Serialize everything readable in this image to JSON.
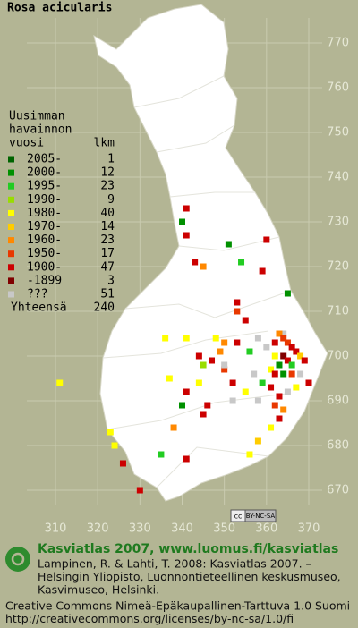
{
  "title": "Rosa acicularis",
  "legend": {
    "heading": [
      "Uusimman",
      "havainnon",
      "vuosi"
    ],
    "count_heading": "lkm",
    "classes": [
      {
        "label": "2005-",
        "count": 1,
        "color": "#006400"
      },
      {
        "label": "2000-",
        "count": 12,
        "color": "#009000"
      },
      {
        "label": "1995-",
        "count": 23,
        "color": "#22cc22"
      },
      {
        "label": "1990-",
        "count": 9,
        "color": "#99dd00"
      },
      {
        "label": "1980-",
        "count": 40,
        "color": "#ffff00"
      },
      {
        "label": "1970-",
        "count": 14,
        "color": "#ffcc00"
      },
      {
        "label": "1960-",
        "count": 23,
        "color": "#ff8800"
      },
      {
        "label": "1950-",
        "count": 17,
        "color": "#e83800"
      },
      {
        "label": "1900-",
        "count": 47,
        "color": "#cc0000"
      },
      {
        "label": "-1899",
        "count": 3,
        "color": "#800000"
      },
      {
        "label": "???",
        "count": 51,
        "color": "#c8c8c8"
      }
    ],
    "total_label": "Yhteensä",
    "total": 240
  },
  "map": {
    "xlim": [
      310,
      370
    ],
    "ylim": [
      670,
      770
    ],
    "xticks": [
      310,
      320,
      330,
      340,
      350,
      360,
      370
    ],
    "yticks": [
      670,
      680,
      690,
      700,
      710,
      720,
      730,
      740,
      750,
      760,
      770
    ],
    "squares": [
      [
        341,
        733,
        8
      ],
      [
        340,
        730,
        1
      ],
      [
        341,
        727,
        8
      ],
      [
        351,
        725,
        1
      ],
      [
        360,
        726,
        8
      ],
      [
        343,
        721,
        8
      ],
      [
        345,
        720,
        6
      ],
      [
        354,
        721,
        2
      ],
      [
        359,
        719,
        8
      ],
      [
        365,
        714,
        1
      ],
      [
        353,
        712,
        8
      ],
      [
        353,
        710,
        7
      ],
      [
        355,
        708,
        8
      ],
      [
        364,
        705,
        10
      ],
      [
        358,
        704,
        10
      ],
      [
        336,
        704,
        4
      ],
      [
        341,
        704,
        4
      ],
      [
        348,
        704,
        4
      ],
      [
        350,
        703,
        6
      ],
      [
        353,
        703,
        8
      ],
      [
        356,
        701,
        2
      ],
      [
        360,
        702,
        10
      ],
      [
        362,
        703,
        8
      ],
      [
        363,
        705,
        6
      ],
      [
        364,
        704,
        7
      ],
      [
        365,
        703,
        7
      ],
      [
        366,
        702,
        8
      ],
      [
        367,
        701,
        8
      ],
      [
        368,
        700,
        5
      ],
      [
        369,
        699,
        8
      ],
      [
        362,
        700,
        4
      ],
      [
        364,
        700,
        9
      ],
      [
        365,
        699,
        8
      ],
      [
        366,
        698,
        2
      ],
      [
        363,
        698,
        1
      ],
      [
        361,
        697,
        4
      ],
      [
        362,
        696,
        8
      ],
      [
        364,
        696,
        1
      ],
      [
        366,
        696,
        7
      ],
      [
        368,
        696,
        10
      ],
      [
        370,
        694,
        8
      ],
      [
        367,
        693,
        4
      ],
      [
        365,
        692,
        10
      ],
      [
        363,
        691,
        8
      ],
      [
        362,
        689,
        7
      ],
      [
        358,
        690,
        10
      ],
      [
        355,
        692,
        4
      ],
      [
        352,
        694,
        8
      ],
      [
        350,
        697,
        7
      ],
      [
        347,
        699,
        8
      ],
      [
        345,
        698,
        3
      ],
      [
        344,
        700,
        8
      ],
      [
        349,
        701,
        6
      ],
      [
        357,
        696,
        10
      ],
      [
        359,
        694,
        2
      ],
      [
        361,
        693,
        8
      ],
      [
        364,
        688,
        6
      ],
      [
        363,
        686,
        8
      ],
      [
        361,
        684,
        4
      ],
      [
        358,
        681,
        5
      ],
      [
        356,
        678,
        4
      ],
      [
        341,
        692,
        8
      ],
      [
        340,
        689,
        1
      ],
      [
        346,
        689,
        8
      ],
      [
        344,
        694,
        4
      ],
      [
        337,
        695,
        4
      ],
      [
        311,
        694,
        4
      ],
      [
        323,
        683,
        4
      ],
      [
        324,
        680,
        4
      ],
      [
        326,
        676,
        8
      ],
      [
        335,
        678,
        2
      ],
      [
        341,
        677,
        8
      ],
      [
        330,
        670,
        8
      ],
      [
        350,
        698,
        10
      ],
      [
        352,
        690,
        10
      ],
      [
        338,
        684,
        6
      ],
      [
        345,
        687,
        8
      ]
    ]
  },
  "badge": {
    "cc": "cc",
    "license": "BY-NC-SA"
  },
  "footer": {
    "site": "Kasviatlas 2007, www.luomus.fi/kasviatlas",
    "citation": [
      "Lampinen, R. & Lahti, T. 2008: Kasviatlas 2007. –",
      "Helsingin Yliopisto, Luonnontieteellinen keskusmuseo,",
      "Kasvimuseo, Helsinki."
    ],
    "license": [
      "Creative Commons Nimeä-Epäkaupallinen-Tarttuva 1.0 Suomi",
      "http://creativecommons.org/licenses/by-nc-sa/1.0/fi"
    ]
  }
}
